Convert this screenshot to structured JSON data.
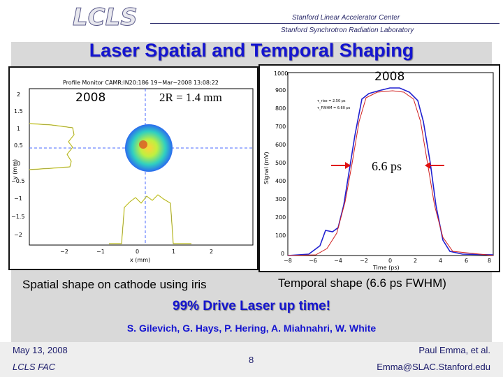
{
  "header": {
    "logo_text": "LCLS",
    "org_line1": "Stanford Linear Accelerator Center",
    "org_line2": "Stanford Synchrotron Radiation Laboratory"
  },
  "title": "Laser Spatial and Temporal Shaping",
  "left_panel": {
    "plot_title": "Profile Monitor CAMR:IN20:186 19−Mar−2008 13:08:22",
    "year": "2008",
    "radius_label": "2R = 1.4 mm",
    "xlabel": "x (mm)",
    "ylabel": "y (mm)",
    "x_ticks": [
      "−2",
      "−1",
      "0",
      "1",
      "2"
    ],
    "y_ticks": [
      "2",
      "1.5",
      "1",
      "0.5",
      "0",
      "−0.5",
      "−1",
      "−1.5",
      "−2"
    ]
  },
  "right_panel": {
    "year": "2008",
    "xlabel": "Time (ps)",
    "ylabel": "Signal (mV)",
    "x_ticks": [
      "−8",
      "−6",
      "−4",
      "−2",
      "0",
      "2",
      "4",
      "6",
      "8"
    ],
    "y_ticks": [
      "0",
      "100",
      "200",
      "300",
      "400",
      "500",
      "600",
      "700",
      "800",
      "900",
      "1000"
    ],
    "legend_line1": "τ_rise = 2.50 ps",
    "legend_line2": "τ_FWHM = 6.60 ps",
    "fwhm_label": "6.6 ps"
  },
  "captions": {
    "spatial": "Spatial shape on cathode using iris",
    "temporal": "Temporal shape (6.6 ps FWHM)"
  },
  "uptime": "99% Drive Laser up time!",
  "authors": "S. Gilevich, G. Hays, P. Hering, A. Miahnahri, W. White",
  "footer": {
    "date": "May 13, 2008",
    "org": "LCLS FAC",
    "page": "8",
    "presenter": "Paul Emma, et al.",
    "email": "Emma@SLAC.Stanford.edu"
  },
  "colors": {
    "title": "#1515d0",
    "trace_blue": "#2020d0",
    "fit_red": "#d02020",
    "arrow_red": "#e01010"
  }
}
